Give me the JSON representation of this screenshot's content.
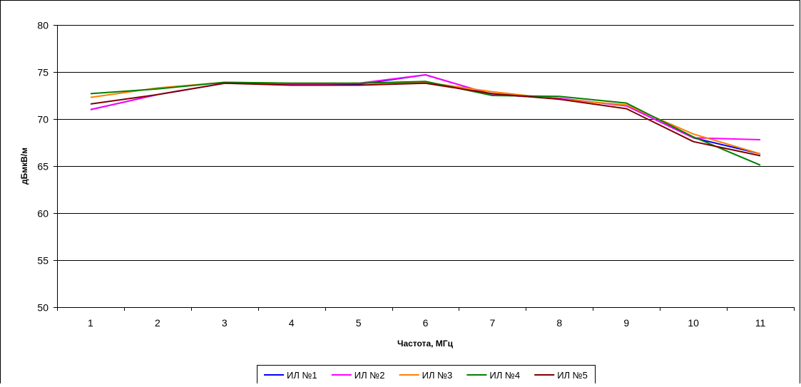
{
  "chart_data": {
    "type": "line",
    "title": "",
    "xlabel": "Частота, МГц",
    "ylabel": "дБмкВ/м",
    "categories": [
      "1",
      "2",
      "3",
      "4",
      "5",
      "6",
      "7",
      "8",
      "9",
      "10",
      "11"
    ],
    "ylim": [
      50,
      80
    ],
    "yticks": [
      50,
      55,
      60,
      65,
      70,
      75,
      80
    ],
    "grid": true,
    "legend_position": "bottom",
    "series": [
      {
        "name": "ИЛ №1",
        "color": "#0000FF",
        "values": [
          71.0,
          72.6,
          73.8,
          73.7,
          73.7,
          74.7,
          72.6,
          72.2,
          71.4,
          68.0,
          66.3
        ]
      },
      {
        "name": "ИЛ №2",
        "color": "#FF00FF",
        "values": [
          71.0,
          72.6,
          73.8,
          73.7,
          73.8,
          74.7,
          72.6,
          72.2,
          71.4,
          68.0,
          67.8
        ]
      },
      {
        "name": "ИЛ №3",
        "color": "#FF8000",
        "values": [
          72.3,
          73.3,
          73.9,
          73.8,
          73.8,
          73.9,
          72.9,
          72.1,
          71.5,
          68.4,
          66.3
        ]
      },
      {
        "name": "ИЛ №4",
        "color": "#008000",
        "values": [
          72.7,
          73.2,
          73.9,
          73.8,
          73.8,
          74.0,
          72.5,
          72.4,
          71.7,
          68.1,
          65.1
        ]
      },
      {
        "name": "ИЛ №5",
        "color": "#800000",
        "values": [
          71.6,
          72.6,
          73.8,
          73.6,
          73.6,
          73.8,
          72.7,
          72.1,
          71.1,
          67.6,
          66.1
        ]
      }
    ]
  }
}
